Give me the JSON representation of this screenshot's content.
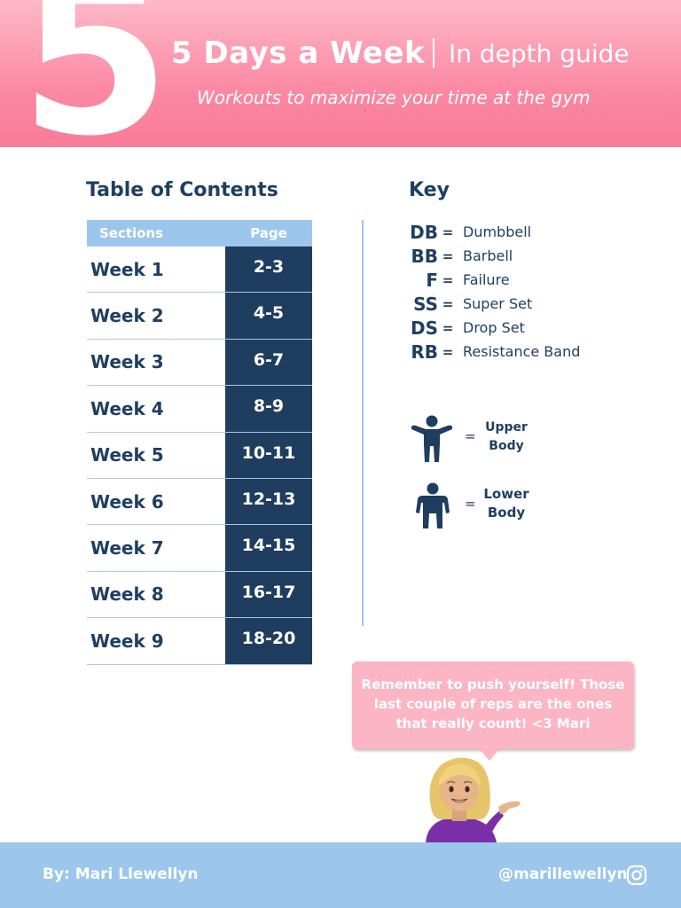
{
  "header": {
    "big_number": "5",
    "title": "5 Days a Week",
    "subtitle": "In depth guide",
    "tagline": "Workouts to maximize your time at the gym"
  },
  "toc": {
    "heading": "Table of Contents",
    "col_sections": "Sections",
    "col_page": "Page",
    "rows": [
      {
        "label": "Week 1",
        "page": "2-3"
      },
      {
        "label": "Week 2",
        "page": "4-5"
      },
      {
        "label": "Week 3",
        "page": "6-7"
      },
      {
        "label": "Week 4",
        "page": "8-9"
      },
      {
        "label": "Week 5",
        "page": "10-11"
      },
      {
        "label": "Week 6",
        "page": "12-13"
      },
      {
        "label": "Week 7",
        "page": "14-15"
      },
      {
        "label": "Week 8",
        "page": "16-17"
      },
      {
        "label": "Week 9",
        "page": "18-20"
      }
    ]
  },
  "key": {
    "heading": "Key",
    "items": [
      {
        "abbr": "DB",
        "eq": "=",
        "def": "Dumbbell"
      },
      {
        "abbr": "BB",
        "eq": "=",
        "def": "Barbell"
      },
      {
        "abbr": "F",
        "eq": "=",
        "def": "Failure"
      },
      {
        "abbr": "SS",
        "eq": "=",
        "def": "Super Set"
      },
      {
        "abbr": "DS",
        "eq": "=",
        "def": "Drop Set"
      },
      {
        "abbr": "RB",
        "eq": "=",
        "def": "Resistance Band"
      }
    ],
    "upper": {
      "eq": "=",
      "line1": "Upper",
      "line2": "Body",
      "icon": "upper-body-icon"
    },
    "lower": {
      "eq": "=",
      "line1": "Lower",
      "line2": "Body",
      "icon": "lower-body-icon"
    }
  },
  "bubble": {
    "line1": "Remember to push yourself! Those",
    "line2": "last couple of reps are the ones",
    "line3": "that really count! <3 Mari"
  },
  "footer": {
    "author": "By: Mari Llewellyn",
    "handle": "@marillewellyn",
    "icon": "instagram-icon"
  },
  "colors": {
    "pink": "#fb89a4",
    "navy": "#1e3d5f",
    "light_blue": "#9cc6ec"
  }
}
